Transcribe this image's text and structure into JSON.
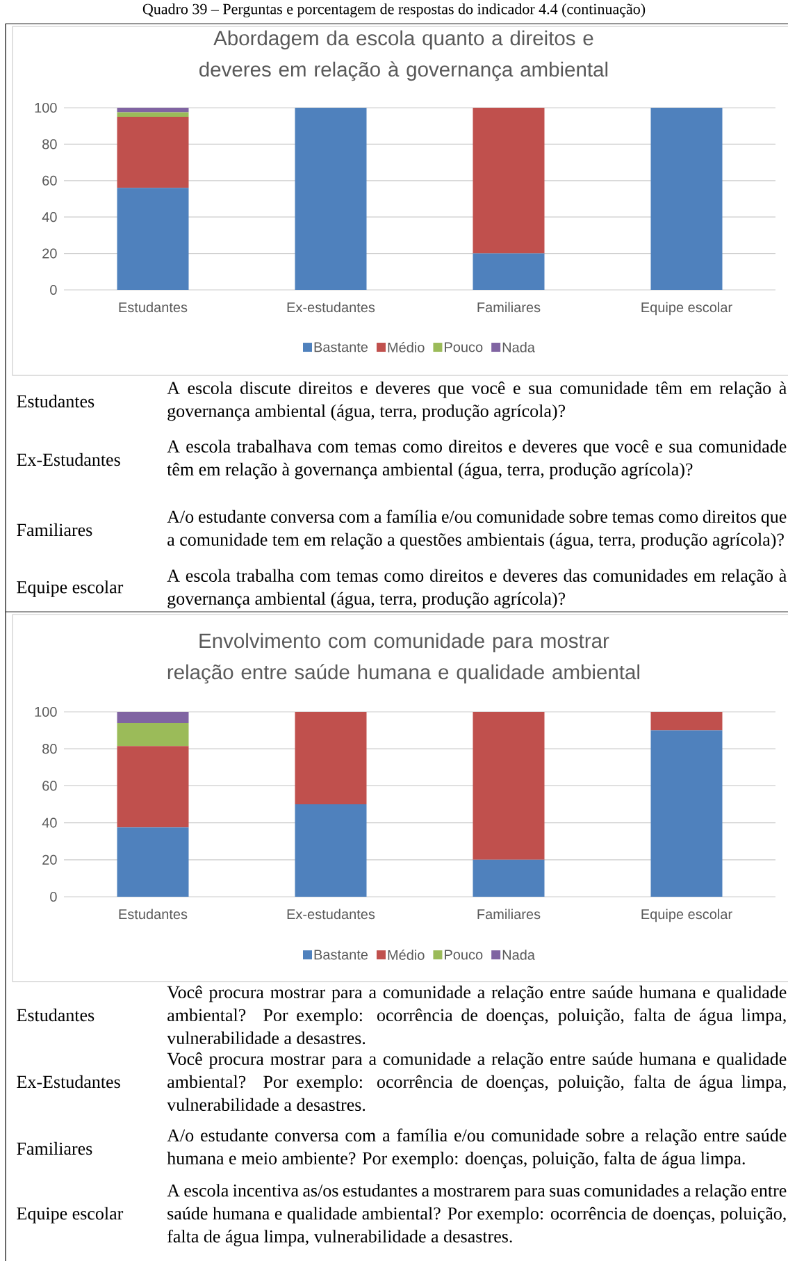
{
  "chart_data": [
    {
      "type": "bar",
      "stacked": true,
      "title": "Abordagem da escola quanto a direitos e deveres em relação à governança ambiental",
      "categories": [
        "Estudantes",
        "Ex-estudantes",
        "Familiares",
        "Equipe escolar"
      ],
      "series": [
        {
          "name": "Bastante",
          "color": "#4f81bd",
          "values": [
            56,
            100,
            20,
            100
          ]
        },
        {
          "name": "Médio",
          "color": "#c0504d",
          "values": [
            39,
            0,
            80,
            0
          ]
        },
        {
          "name": "Pouco",
          "color": "#9bbb59",
          "values": [
            2.5,
            0,
            0,
            0
          ]
        },
        {
          "name": "Nada",
          "color": "#8064a2",
          "values": [
            2.5,
            0,
            0,
            0
          ]
        }
      ],
      "ylim": [
        0,
        100
      ],
      "yticks": [
        0,
        20,
        40,
        60,
        80,
        100
      ],
      "grid": "y",
      "legend": "bottom",
      "annotations": [
        "Quadro 39 – Perguntas e porcentagem de respostas do indicador 4.4 (continuação)",
        "Estudantes",
        "A escola discute direitos e deveres que você e sua comunidade têm em relação à governança ambiental (água, terra, produção agrícola)?",
        "Ex-Estudantes",
        "A escola trabalhava com temas como direitos e deveres que você e sua comunidade têm em relação à governança ambiental (água, terra, produção agrícola)?",
        "Familiares",
        "A/o estudante conversa com a família e/ou comunidade sobre temas como direitos que a comunidade tem em relação a questões ambientais (água, terra, produção agrícola)?",
        "Equipe escolar",
        "A escola trabalha com temas como direitos e deveres das comunidades em relação à governança ambiental (água, terra, produção agrícola)?"
      ]
    },
    {
      "type": "bar",
      "stacked": true,
      "title": "Envolvimento com comunidade para mostrar relação entre saúde humana e qualidade ambiental",
      "categories": [
        "Estudantes",
        "Ex-estudantes",
        "Familiares",
        "Equipe escolar"
      ],
      "series": [
        {
          "name": "Bastante",
          "color": "#4f81bd",
          "values": [
            37.5,
            50,
            20,
            90
          ]
        },
        {
          "name": "Médio",
          "color": "#c0504d",
          "values": [
            44,
            50,
            80,
            10
          ]
        },
        {
          "name": "Pouco",
          "color": "#9bbb59",
          "values": [
            12.5,
            0,
            0,
            0
          ]
        },
        {
          "name": "Nada",
          "color": "#8064a2",
          "values": [
            6,
            0,
            0,
            0
          ]
        }
      ],
      "ylim": [
        0,
        100
      ],
      "yticks": [
        0,
        20,
        40,
        60,
        80,
        100
      ],
      "grid": "y",
      "legend": "bottom",
      "annotations": [
        "Estudantes",
        "Você procura mostrar para a comunidade a relação entre saúde humana e qualidade ambiental? Por exemplo: ocorrência de doenças, poluição, falta de água limpa, vulnerabilidade a desastres.",
        "Ex-Estudantes",
        "Você procura mostrar para a comunidade a relação entre saúde humana e qualidade ambiental? Por exemplo: ocorrência de doenças, poluição, falta de água limpa, vulnerabilidade a desastres.",
        "Familiares",
        "A/o estudante conversa com a família e/ou comunidade sobre a relação entre saúde humana e meio ambiente? Por exemplo: doenças, poluição, falta de água limpa.",
        "Equipe escolar",
        "A escola incentiva as/os estudantes a mostrarem para suas comunidades a relação entre saúde humana e qualidade ambiental? Por exemplo: ocorrência de doenças, poluição, falta de água limpa, vulnerabilidade a desastres."
      ]
    }
  ]
}
